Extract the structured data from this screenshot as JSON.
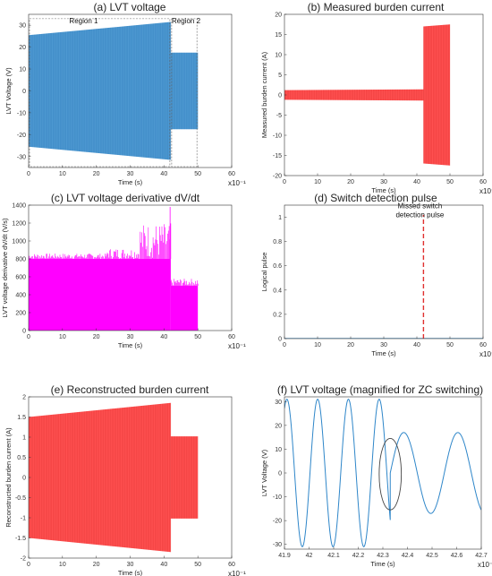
{
  "colors": {
    "blue": "#2e86c9",
    "red": "#ff2a2a",
    "magenta": "#ff00ff",
    "pulse": "#e0302f",
    "axis": "#333333"
  },
  "chart_data": [
    {
      "id": "a",
      "type": "area",
      "title": "(a) LVT voltage",
      "xlabel": "Time (s)",
      "ylabel": "LVT Voltage (V)",
      "xexp": "x10⁻¹",
      "xlim": [
        0,
        60
      ],
      "ylim": [
        -35,
        35
      ],
      "xticks": [
        0,
        10,
        20,
        30,
        40,
        50,
        60
      ],
      "yticks": [
        -30,
        -20,
        -10,
        0,
        10,
        20,
        30
      ],
      "color": "#2e86c9",
      "envelope": [
        {
          "x0": 0,
          "x1": 42,
          "amp0": 25.5,
          "amp1": 31.5
        },
        {
          "x0": 42,
          "x1": 50,
          "amp0": 17.5,
          "amp1": 17.5
        }
      ],
      "regions": [
        {
          "label": "Region 1",
          "x0": 0,
          "x1": 42,
          "y0": -35,
          "y1": 33
        },
        {
          "label": "Region 2",
          "x0": 42,
          "x1": 50,
          "y0": -35,
          "y1": 33
        }
      ]
    },
    {
      "id": "b",
      "type": "area",
      "title": "(b) Measured burden current",
      "xlabel": "Time (s)",
      "ylabel": "Measured burden current (A)",
      "xexp": "x10⁻¹",
      "xlim": [
        0,
        60
      ],
      "ylim": [
        -20,
        20
      ],
      "xticks": [
        0,
        10,
        20,
        30,
        40,
        50,
        60
      ],
      "yticks": [
        -20,
        -15,
        -10,
        -5,
        0,
        5,
        10,
        15,
        20
      ],
      "color": "#ff2a2a",
      "envelope": [
        {
          "x0": 0,
          "x1": 42,
          "amp0": 1.2,
          "amp1": 1.4
        },
        {
          "x0": 42,
          "x1": 50,
          "amp0": 17.0,
          "amp1": 17.5
        }
      ]
    },
    {
      "id": "c",
      "type": "bar",
      "title": "(c) LVT voltage derivative dV/dt",
      "xlabel": "Time (s)",
      "ylabel": "LVT voltage derivative dV/dt (V/s)",
      "xexp": "x10⁻¹",
      "xlim": [
        0,
        60
      ],
      "ylim": [
        0,
        1400
      ],
      "xticks": [
        0,
        10,
        20,
        30,
        40,
        50,
        60
      ],
      "yticks": [
        0,
        200,
        400,
        600,
        800,
        1000,
        1200,
        1400
      ],
      "color": "#ff00ff",
      "segments": [
        {
          "x0": 0,
          "x1": 42,
          "base": 800,
          "peak": 1200
        },
        {
          "x0": 42,
          "x1": 50,
          "base": 500,
          "peak": 580
        }
      ],
      "spike": {
        "x": 41.8,
        "y": 1380
      }
    },
    {
      "id": "d",
      "type": "line",
      "title": "(d) Switch detection pulse",
      "xlabel": "Time (s)",
      "ylabel": "Logical pulse",
      "xexp": "x10⁻¹",
      "xlim": [
        0,
        60
      ],
      "ylim": [
        0,
        1.1
      ],
      "xticks": [
        0,
        10,
        20,
        30,
        40,
        50,
        60
      ],
      "yticks": [
        0,
        0.2,
        0.4,
        0.6,
        0.8,
        1
      ],
      "baseline": 0,
      "pulse": {
        "x": 42,
        "y0": 0,
        "y1": 1.02
      },
      "annotation": {
        "line1": "Missed switch",
        "line2": "detection pulse",
        "x": 43,
        "y": 1.0
      }
    },
    {
      "id": "e",
      "type": "area",
      "title": "(e) Reconstructed burden current",
      "xlabel": "Time (s)",
      "ylabel": "Reconstructed burden current (A)",
      "xexp": "x10⁻¹",
      "xlim": [
        0,
        60
      ],
      "ylim": [
        -2,
        2
      ],
      "xticks": [
        0,
        10,
        20,
        30,
        40,
        50,
        60
      ],
      "yticks": [
        -2,
        -1.5,
        -1,
        -0.5,
        0,
        0.5,
        1,
        1.5,
        2
      ],
      "color": "#ff2a2a",
      "envelope": [
        {
          "x0": 0,
          "x1": 42,
          "amp0": 1.5,
          "amp1": 1.85
        },
        {
          "x0": 42,
          "x1": 50,
          "amp0": 1.02,
          "amp1": 1.02
        }
      ]
    },
    {
      "id": "f",
      "type": "line",
      "title": "(f) LVT voltage (magnified for ZC switching)",
      "xlabel": "Time (s)",
      "ylabel": "LVT Voltage (V)",
      "xexp": "x10⁻¹",
      "xlim": [
        41.9,
        42.7
      ],
      "ylim": [
        -32,
        32
      ],
      "xticks": [
        41.9,
        42,
        42.1,
        42.2,
        42.3,
        42.4,
        42.5,
        42.6,
        42.7
      ],
      "yticks": [
        -30,
        -20,
        -10,
        0,
        10,
        20,
        30
      ],
      "color": "#2e86c9",
      "segments": [
        {
          "x0": 41.9,
          "x1": 42.33,
          "amp": 31,
          "freq": 8.0,
          "phase_peak": 41.91
        },
        {
          "x0": 42.33,
          "x1": 42.7,
          "amp": 17,
          "freq": 4.55,
          "phase_peak": 42.385
        }
      ],
      "marker": {
        "x": 42.33,
        "y": -0.5,
        "rx": 0.045,
        "ry": 15
      }
    }
  ]
}
